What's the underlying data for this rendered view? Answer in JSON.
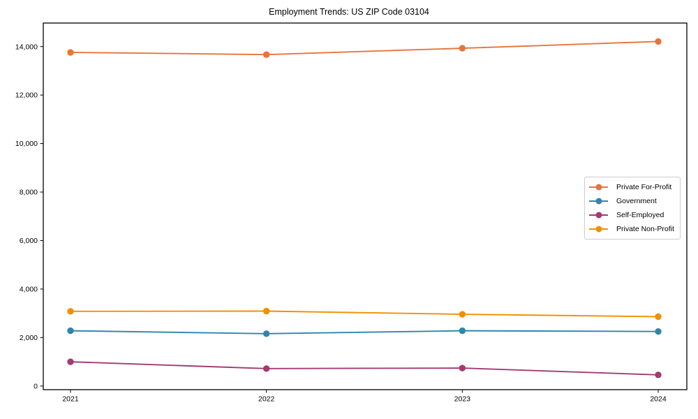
{
  "figure": {
    "background": "#ffffff"
  },
  "chart_data": {
    "type": "line",
    "title": "Employment Trends: US ZIP Code 03104",
    "xlabel": "",
    "ylabel": "",
    "x": [
      2021,
      2022,
      2023,
      2024
    ],
    "xtick_labels": [
      "2021",
      "2022",
      "2023",
      "2024"
    ],
    "yticks": [
      0,
      2000,
      4000,
      6000,
      8000,
      10000,
      12000,
      14000
    ],
    "ytick_labels": [
      "0",
      "2,000",
      "4,000",
      "6,000",
      "8,000",
      "10,000",
      "12,000",
      "14,000"
    ],
    "ylim": [
      -150,
      14970
    ],
    "grid": false,
    "marker": "circle",
    "legend_position": "center right",
    "axis_color": "#000000",
    "legend_border_color": "#cccccc",
    "series": [
      {
        "name": "Private For-Profit",
        "color": "#E8743B",
        "values": [
          13760,
          13670,
          13930,
          14210
        ]
      },
      {
        "name": "Government",
        "color": "#2E86AB",
        "values": [
          2280,
          2160,
          2280,
          2250
        ]
      },
      {
        "name": "Self-Employed",
        "color": "#A23B72",
        "values": [
          1000,
          720,
          740,
          460
        ]
      },
      {
        "name": "Private Non-Profit",
        "color": "#F18F01",
        "values": [
          3080,
          3090,
          2960,
          2860
        ]
      }
    ]
  }
}
